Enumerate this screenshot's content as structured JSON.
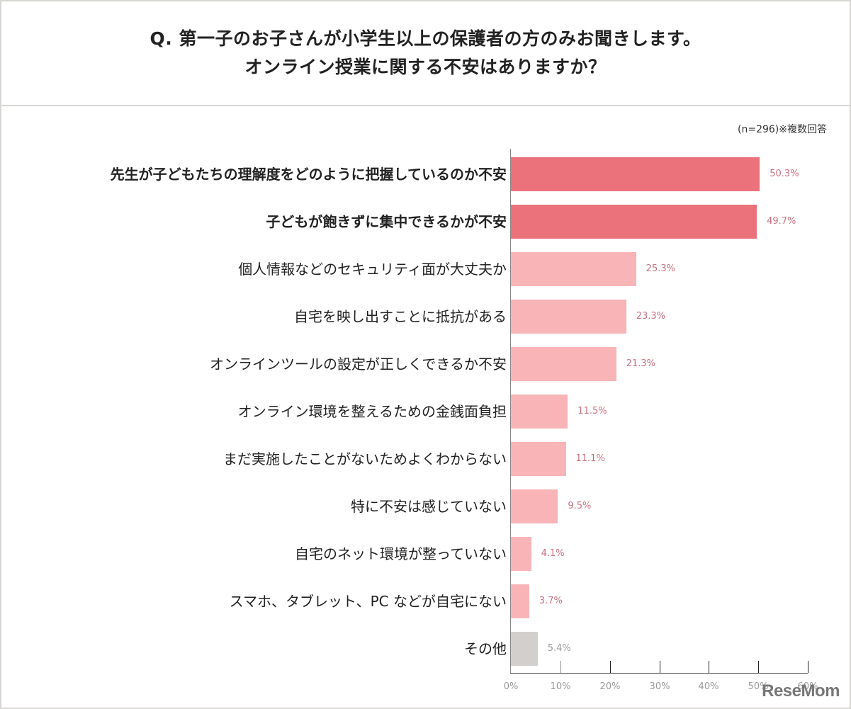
{
  "header": {
    "title_line1": "Q. 第一子のお子さんが小学生以上の保護者の方のみお聞きします。",
    "title_line2": "オンライン授業に関する不安はありますか？"
  },
  "note": "(n=296)※複数回答",
  "logo": "ReseMom",
  "colors": {
    "highlight": "#eb717b",
    "normal": "#f8b4b7",
    "other": "#d3cfcd",
    "value_text_pink": "#c8727f",
    "value_text_gray": "#999999"
  },
  "chart_data": {
    "type": "bar",
    "orientation": "horizontal",
    "title": "Q. 第一子のお子さんが小学生以上の保護者の方のみお聞きします。オンライン授業に関する不安はありますか？",
    "subtitle": "(n=296)※複数回答",
    "xlabel": "",
    "ylabel": "",
    "xlim": [
      0,
      60
    ],
    "x_ticks": [
      "0%",
      "10%",
      "20%",
      "30%",
      "40%",
      "50%",
      "60%"
    ],
    "grid": false,
    "legend": null,
    "categories": [
      "先生が子どもたちの理解度をどのように把握しているのか不安",
      "子どもが飽きずに集中できるかが不安",
      "個人情報などのセキュリティ面が大丈夫か",
      "自宅を映し出すことに抵抗がある",
      "オンラインツールの設定が正しくできるか不安",
      "オンライン環境を整えるための金銭面負担",
      "まだ実施したことがないためよくわからない",
      "特に不安は感じていない",
      "自宅のネット環境が整っていない",
      "スマホ、タブレット、PC などが自宅にない",
      "その他"
    ],
    "values": [
      50.3,
      49.7,
      25.3,
      23.3,
      21.3,
      11.5,
      11.1,
      9.5,
      4.1,
      3.7,
      5.4
    ],
    "value_labels": [
      "50.3%",
      "49.7%",
      "25.3%",
      "23.3%",
      "21.3%",
      "11.5%",
      "11.1%",
      "9.5%",
      "4.1%",
      "3.7%",
      "5.4%"
    ],
    "highlighted": [
      true,
      true,
      false,
      false,
      false,
      false,
      false,
      false,
      false,
      false,
      false
    ],
    "bar_style": [
      "highlight",
      "highlight",
      "normal",
      "normal",
      "normal",
      "normal",
      "normal",
      "normal",
      "normal",
      "normal",
      "other"
    ]
  }
}
